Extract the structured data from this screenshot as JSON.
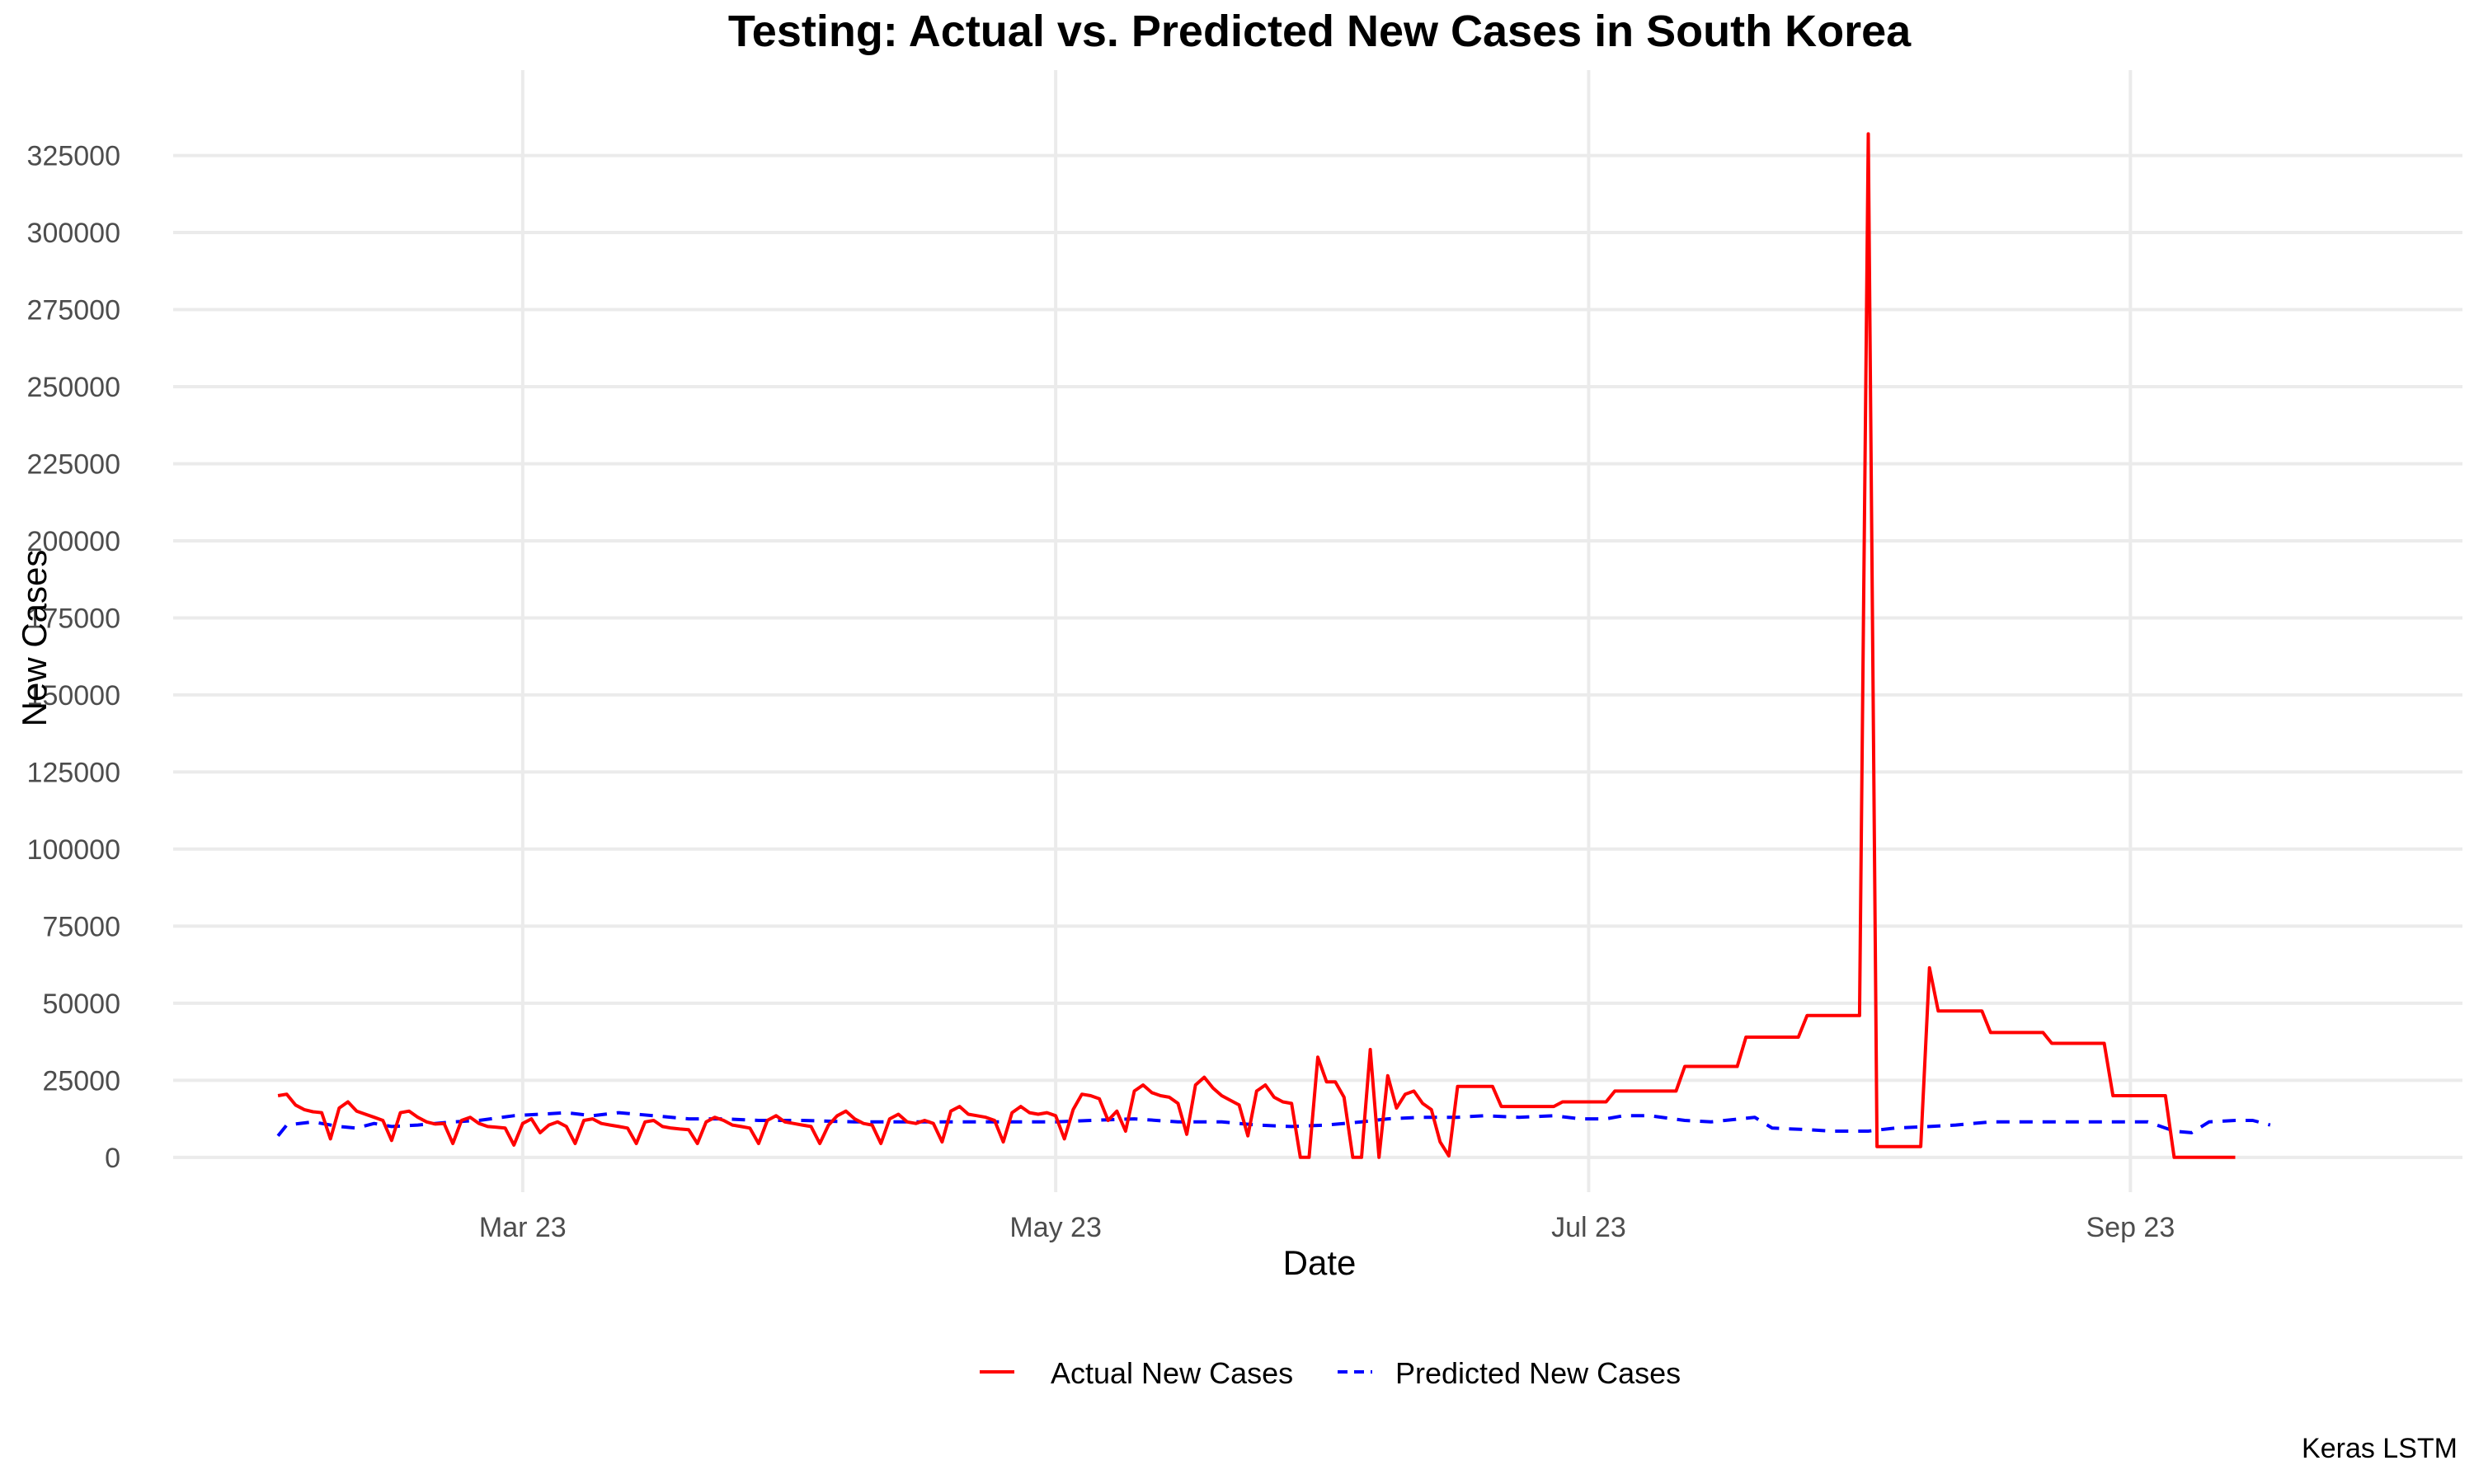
{
  "chart_data": {
    "type": "line",
    "title": "Testing: Actual vs. Predicted New Cases in South Korea",
    "xlabel": "Date",
    "ylabel": "New Cases",
    "caption": "Keras LSTM",
    "x_tick_labels": [
      "Mar 23",
      "May 23",
      "Jul 23",
      "Sep 23"
    ],
    "x_tick_dates": [
      "2023-03-01",
      "2023-05-01",
      "2023-07-01",
      "2023-09-01"
    ],
    "xlim": [
      "2023-01-20",
      "2023-10-09"
    ],
    "y_ticks": [
      0,
      25000,
      50000,
      75000,
      100000,
      125000,
      150000,
      175000,
      200000,
      225000,
      250000,
      275000,
      300000,
      325000
    ],
    "y_tick_labels": [
      "0",
      "25000",
      "50000",
      "75000",
      "100000",
      "125000",
      "150000",
      "175000",
      "200000",
      "225000",
      "250000",
      "275000",
      "300000",
      "325000"
    ],
    "ylim": [
      -7000,
      342000
    ],
    "grid": true,
    "legend_position": "bottom",
    "series": [
      {
        "name": "Actual New Cases",
        "color": "#FF0000",
        "line_style": "solid",
        "points": [
          [
            "2023-02-01",
            20000
          ],
          [
            "2023-02-02",
            20500
          ],
          [
            "2023-02-03",
            17000
          ],
          [
            "2023-02-04",
            15500
          ],
          [
            "2023-02-05",
            14800
          ],
          [
            "2023-02-06",
            14500
          ],
          [
            "2023-02-07",
            6000
          ],
          [
            "2023-02-08",
            16000
          ],
          [
            "2023-02-09",
            18000
          ],
          [
            "2023-02-10",
            15000
          ],
          [
            "2023-02-11",
            14000
          ],
          [
            "2023-02-12",
            13000
          ],
          [
            "2023-02-13",
            12000
          ],
          [
            "2023-02-14",
            5500
          ],
          [
            "2023-02-15",
            14500
          ],
          [
            "2023-02-16",
            15000
          ],
          [
            "2023-02-17",
            13000
          ],
          [
            "2023-02-18",
            11500
          ],
          [
            "2023-02-19",
            10800
          ],
          [
            "2023-02-20",
            11000
          ],
          [
            "2023-02-21",
            4500
          ],
          [
            "2023-02-22",
            12000
          ],
          [
            "2023-02-23",
            13000
          ],
          [
            "2023-02-24",
            11000
          ],
          [
            "2023-02-25",
            10000
          ],
          [
            "2023-02-26",
            9800
          ],
          [
            "2023-02-27",
            9500
          ],
          [
            "2023-02-28",
            4000
          ],
          [
            "2023-03-01",
            11000
          ],
          [
            "2023-03-02",
            12500
          ],
          [
            "2023-03-03",
            8000
          ],
          [
            "2023-03-04",
            10500
          ],
          [
            "2023-03-05",
            11500
          ],
          [
            "2023-03-06",
            10000
          ],
          [
            "2023-03-07",
            4500
          ],
          [
            "2023-03-08",
            12000
          ],
          [
            "2023-03-09",
            12500
          ],
          [
            "2023-03-10",
            11000
          ],
          [
            "2023-03-11",
            10500
          ],
          [
            "2023-03-12",
            10000
          ],
          [
            "2023-03-13",
            9500
          ],
          [
            "2023-03-14",
            4500
          ],
          [
            "2023-03-15",
            11500
          ],
          [
            "2023-03-16",
            12000
          ],
          [
            "2023-03-17",
            10000
          ],
          [
            "2023-03-18",
            9500
          ],
          [
            "2023-03-19",
            9200
          ],
          [
            "2023-03-20",
            9000
          ],
          [
            "2023-03-21",
            4500
          ],
          [
            "2023-03-22",
            11500
          ],
          [
            "2023-03-23",
            13000
          ],
          [
            "2023-03-24",
            12000
          ],
          [
            "2023-03-25",
            10500
          ],
          [
            "2023-03-26",
            10000
          ],
          [
            "2023-03-27",
            9500
          ],
          [
            "2023-03-28",
            4500
          ],
          [
            "2023-03-29",
            12000
          ],
          [
            "2023-03-30",
            13500
          ],
          [
            "2023-03-31",
            11500
          ],
          [
            "2023-04-01",
            11000
          ],
          [
            "2023-04-02",
            10500
          ],
          [
            "2023-04-03",
            10000
          ],
          [
            "2023-04-04",
            4500
          ],
          [
            "2023-04-05",
            10500
          ],
          [
            "2023-04-06",
            13500
          ],
          [
            "2023-04-07",
            15000
          ],
          [
            "2023-04-08",
            12500
          ],
          [
            "2023-04-09",
            11000
          ],
          [
            "2023-04-10",
            10500
          ],
          [
            "2023-04-11",
            4500
          ],
          [
            "2023-04-12",
            12500
          ],
          [
            "2023-04-13",
            14000
          ],
          [
            "2023-04-14",
            11500
          ],
          [
            "2023-04-15",
            11000
          ],
          [
            "2023-04-16",
            12000
          ],
          [
            "2023-04-17",
            11000
          ],
          [
            "2023-04-18",
            5000
          ],
          [
            "2023-04-19",
            15000
          ],
          [
            "2023-04-20",
            16500
          ],
          [
            "2023-04-21",
            14000
          ],
          [
            "2023-04-22",
            13500
          ],
          [
            "2023-04-23",
            13000
          ],
          [
            "2023-04-24",
            12000
          ],
          [
            "2023-04-25",
            5000
          ],
          [
            "2023-04-26",
            14500
          ],
          [
            "2023-04-27",
            16500
          ],
          [
            "2023-04-28",
            14500
          ],
          [
            "2023-04-29",
            14000
          ],
          [
            "2023-04-30",
            14500
          ],
          [
            "2023-05-01",
            13500
          ],
          [
            "2023-05-02",
            6000
          ],
          [
            "2023-05-03",
            15500
          ],
          [
            "2023-05-04",
            20500
          ],
          [
            "2023-05-05",
            20000
          ],
          [
            "2023-05-06",
            19000
          ],
          [
            "2023-05-07",
            12000
          ],
          [
            "2023-05-08",
            15000
          ],
          [
            "2023-05-09",
            8500
          ],
          [
            "2023-05-10",
            21500
          ],
          [
            "2023-05-11",
            23500
          ],
          [
            "2023-05-12",
            21000
          ],
          [
            "2023-05-13",
            20000
          ],
          [
            "2023-05-14",
            19500
          ],
          [
            "2023-05-15",
            17500
          ],
          [
            "2023-05-16",
            7500
          ],
          [
            "2023-05-17",
            23500
          ],
          [
            "2023-05-18",
            26000
          ],
          [
            "2023-05-19",
            22500
          ],
          [
            "2023-05-20",
            20000
          ],
          [
            "2023-05-21",
            18500
          ],
          [
            "2023-05-22",
            17000
          ],
          [
            "2023-05-23",
            7000
          ],
          [
            "2023-05-24",
            21500
          ],
          [
            "2023-05-25",
            23500
          ],
          [
            "2023-05-26",
            19500
          ],
          [
            "2023-05-27",
            18000
          ],
          [
            "2023-05-28",
            17500
          ],
          [
            "2023-05-29",
            0
          ],
          [
            "2023-05-30",
            0
          ],
          [
            "2023-05-31",
            32500
          ],
          [
            "2023-06-01",
            24500
          ],
          [
            "2023-06-02",
            24500
          ],
          [
            "2023-06-03",
            19500
          ],
          [
            "2023-06-04",
            0
          ],
          [
            "2023-06-05",
            0
          ],
          [
            "2023-06-06",
            35000
          ],
          [
            "2023-06-07",
            0
          ],
          [
            "2023-06-08",
            26500
          ],
          [
            "2023-06-09",
            16000
          ],
          [
            "2023-06-10",
            20500
          ],
          [
            "2023-06-11",
            21500
          ],
          [
            "2023-06-12",
            17500
          ],
          [
            "2023-06-13",
            15500
          ],
          [
            "2023-06-14",
            5000
          ],
          [
            "2023-06-15",
            500
          ],
          [
            "2023-06-16",
            23000
          ],
          [
            "2023-06-20",
            23000
          ],
          [
            "2023-06-21",
            16500
          ],
          [
            "2023-06-27",
            16500
          ],
          [
            "2023-06-28",
            18000
          ],
          [
            "2023-07-03",
            18000
          ],
          [
            "2023-07-04",
            21500
          ],
          [
            "2023-07-11",
            21500
          ],
          [
            "2023-07-12",
            29500
          ],
          [
            "2023-07-18",
            29500
          ],
          [
            "2023-07-19",
            39000
          ],
          [
            "2023-07-25",
            39000
          ],
          [
            "2023-07-26",
            46000
          ],
          [
            "2023-08-01",
            46000
          ],
          [
            "2023-08-02",
            332000
          ],
          [
            "2023-08-03",
            3500
          ],
          [
            "2023-08-08",
            3500
          ],
          [
            "2023-08-09",
            61500
          ],
          [
            "2023-08-10",
            47500
          ],
          [
            "2023-08-15",
            47500
          ],
          [
            "2023-08-16",
            40500
          ],
          [
            "2023-08-22",
            40500
          ],
          [
            "2023-08-23",
            37000
          ],
          [
            "2023-08-29",
            37000
          ],
          [
            "2023-08-30",
            20000
          ],
          [
            "2023-09-05",
            20000
          ],
          [
            "2023-09-06",
            0
          ],
          [
            "2023-09-13",
            0
          ]
        ]
      },
      {
        "name": "Predicted New Cases",
        "color": "#0000FF",
        "line_style": "dashed",
        "points": [
          [
            "2023-02-01",
            7000
          ],
          [
            "2023-02-02",
            10500
          ],
          [
            "2023-02-05",
            11500
          ],
          [
            "2023-02-08",
            10000
          ],
          [
            "2023-02-10",
            9500
          ],
          [
            "2023-02-12",
            11000
          ],
          [
            "2023-02-14",
            10000
          ],
          [
            "2023-02-17",
            10500
          ],
          [
            "2023-02-21",
            11500
          ],
          [
            "2023-02-24",
            12000
          ],
          [
            "2023-02-28",
            13500
          ],
          [
            "2023-03-03",
            14000
          ],
          [
            "2023-03-06",
            14500
          ],
          [
            "2023-03-09",
            13500
          ],
          [
            "2023-03-12",
            14500
          ],
          [
            "2023-03-16",
            13500
          ],
          [
            "2023-03-20",
            12500
          ],
          [
            "2023-03-24",
            12500
          ],
          [
            "2023-03-28",
            12000
          ],
          [
            "2023-04-02",
            12000
          ],
          [
            "2023-04-08",
            11500
          ],
          [
            "2023-04-14",
            11500
          ],
          [
            "2023-04-20",
            11500
          ],
          [
            "2023-04-26",
            11500
          ],
          [
            "2023-05-01",
            11500
          ],
          [
            "2023-05-05",
            12000
          ],
          [
            "2023-05-10",
            12500
          ],
          [
            "2023-05-15",
            11500
          ],
          [
            "2023-05-20",
            11500
          ],
          [
            "2023-05-24",
            10500
          ],
          [
            "2023-05-28",
            10000
          ],
          [
            "2023-06-01",
            10500
          ],
          [
            "2023-06-05",
            11500
          ],
          [
            "2023-06-08",
            12500
          ],
          [
            "2023-06-12",
            13000
          ],
          [
            "2023-06-16",
            13000
          ],
          [
            "2023-06-19",
            13500
          ],
          [
            "2023-06-23",
            13000
          ],
          [
            "2023-06-27",
            13500
          ],
          [
            "2023-06-30",
            12500
          ],
          [
            "2023-07-03",
            12500
          ],
          [
            "2023-07-05",
            13500
          ],
          [
            "2023-07-08",
            13500
          ],
          [
            "2023-07-12",
            12000
          ],
          [
            "2023-07-15",
            11500
          ],
          [
            "2023-07-20",
            13000
          ],
          [
            "2023-07-22",
            9500
          ],
          [
            "2023-07-26",
            9000
          ],
          [
            "2023-07-29",
            8500
          ],
          [
            "2023-08-02",
            8500
          ],
          [
            "2023-08-05",
            9500
          ],
          [
            "2023-08-09",
            10000
          ],
          [
            "2023-08-12",
            10500
          ],
          [
            "2023-08-16",
            11500
          ],
          [
            "2023-08-20",
            11500
          ],
          [
            "2023-08-24",
            11500
          ],
          [
            "2023-08-28",
            11500
          ],
          [
            "2023-09-01",
            11500
          ],
          [
            "2023-09-03",
            11500
          ],
          [
            "2023-09-06",
            8500
          ],
          [
            "2023-09-08",
            8000
          ],
          [
            "2023-09-10",
            11500
          ],
          [
            "2023-09-13",
            12000
          ],
          [
            "2023-09-15",
            12000
          ],
          [
            "2023-09-17",
            10500
          ]
        ]
      }
    ]
  }
}
